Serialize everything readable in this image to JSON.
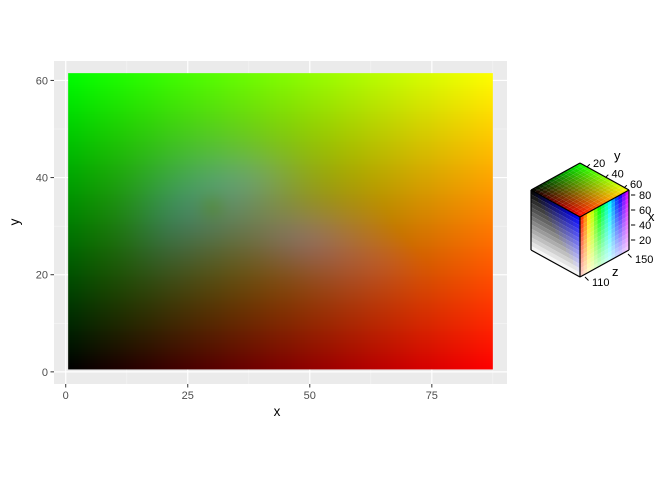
{
  "chart_data": {
    "type": "heatmap",
    "title": "",
    "xlabel": "x",
    "ylabel": "y",
    "xlim": [
      -2.4,
      90.4
    ],
    "ylim": [
      -2.5,
      64.0
    ],
    "x_ticks": [
      0,
      25,
      50,
      75
    ],
    "y_ticks": [
      0,
      20,
      40,
      60
    ],
    "grid": true,
    "raster": {
      "x_range": [
        0.5,
        87.5
      ],
      "y_range": [
        0.5,
        61.5
      ],
      "columns": 87,
      "rows": 61
    },
    "color_mapping": {
      "type": "rgb-cube",
      "red": "x",
      "green": "y",
      "blue": "z",
      "z_range": [
        94,
        195
      ]
    },
    "legend": {
      "placement": "right",
      "type": "cube",
      "axes": [
        {
          "name": "y",
          "ticks": [
            "20",
            "40",
            "60"
          ]
        },
        {
          "name": "x",
          "ticks": [
            "80",
            "60",
            "40",
            "20"
          ]
        },
        {
          "name": "z",
          "ticks": [
            "110",
            "150"
          ]
        }
      ]
    }
  }
}
